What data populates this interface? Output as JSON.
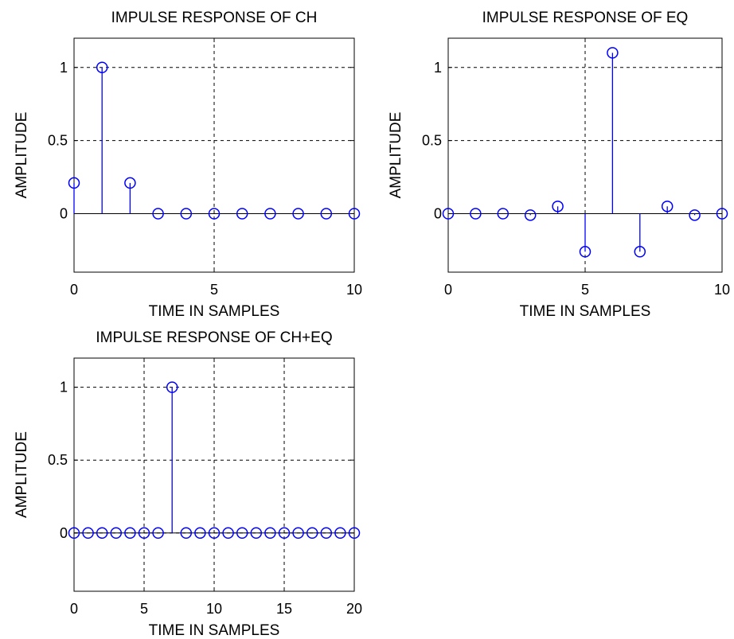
{
  "chart_data": [
    {
      "type": "stem",
      "title": "IMPULSE RESPONSE OF CH",
      "xlabel": "TIME IN SAMPLES",
      "ylabel": "AMPLITUDE",
      "xlim": [
        0,
        10
      ],
      "ylim": [
        -0.4,
        1.2
      ],
      "xticks": [
        "0",
        "5",
        "10"
      ],
      "yticks": [
        "0",
        "0.5",
        "1"
      ],
      "grid": true,
      "x": [
        0,
        1,
        2,
        3,
        4,
        5,
        6,
        7,
        8,
        9,
        10
      ],
      "values": [
        0.21,
        1.0,
        0.21,
        0,
        0,
        0,
        0,
        0,
        0,
        0,
        0
      ]
    },
    {
      "type": "stem",
      "title": "IMPULSE RESPONSE OF EQ",
      "xlabel": "TIME IN SAMPLES",
      "ylabel": "AMPLITUDE",
      "xlim": [
        0,
        10
      ],
      "ylim": [
        -0.4,
        1.2
      ],
      "xticks": [
        "0",
        "5",
        "10"
      ],
      "yticks": [
        "0",
        "0.5",
        "1"
      ],
      "grid": true,
      "x": [
        0,
        1,
        2,
        3,
        4,
        5,
        6,
        7,
        8,
        9,
        10
      ],
      "values": [
        0,
        0,
        0,
        -0.01,
        0.05,
        -0.26,
        1.1,
        -0.26,
        0.05,
        -0.01,
        0
      ]
    },
    {
      "type": "stem",
      "title": "IMPULSE RESPONSE OF CH+EQ",
      "xlabel": "TIME IN SAMPLES",
      "ylabel": "AMPLITUDE",
      "xlim": [
        0,
        20
      ],
      "ylim": [
        -0.4,
        1.2
      ],
      "xticks": [
        "0",
        "5",
        "10",
        "15",
        "20"
      ],
      "yticks": [
        "0",
        "0.5",
        "1"
      ],
      "grid": true,
      "x": [
        0,
        1,
        2,
        3,
        4,
        5,
        6,
        7,
        8,
        9,
        10,
        11,
        12,
        13,
        14,
        15,
        16,
        17,
        18,
        19,
        20
      ],
      "values": [
        0,
        0,
        0,
        0,
        0,
        0,
        0,
        1.0,
        0,
        0,
        0,
        0,
        0,
        0,
        0,
        0,
        0,
        0,
        0,
        0,
        0
      ]
    }
  ],
  "colors": {
    "stem": "#0000ff",
    "axes": "#000000",
    "grid": "#000000",
    "background": "#ffffff"
  }
}
